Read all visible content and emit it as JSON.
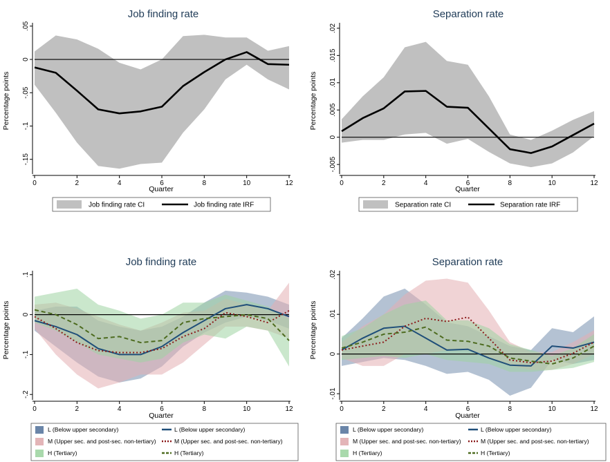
{
  "chart_data": [
    {
      "type": "area",
      "title": "Job finding rate",
      "xlabel": "Quarter",
      "ylabel": "Percentage points",
      "xlim": [
        0,
        12
      ],
      "ylim": [
        -0.17,
        0.055
      ],
      "xticks": [
        0,
        2,
        4,
        6,
        8,
        10,
        12
      ],
      "xtick_labels": [
        "0",
        "2",
        "4",
        "6",
        "8",
        "10",
        "12"
      ],
      "yticks": [
        0.05,
        0,
        -0.05,
        -0.1,
        -0.15
      ],
      "ytick_labels": [
        ".05",
        "0",
        "-.05",
        "-.1",
        "-.15"
      ],
      "zero_line": true,
      "x": [
        0,
        1,
        2,
        3,
        4,
        5,
        6,
        7,
        8,
        9,
        10,
        11,
        12
      ],
      "series": [
        {
          "name": "Job finding rate IRF",
          "color": "#000000",
          "style": "solid",
          "values": [
            -0.012,
            -0.02,
            -0.047,
            -0.075,
            -0.081,
            -0.078,
            -0.071,
            -0.04,
            -0.019,
            0.0,
            0.011,
            -0.007,
            -0.008
          ]
        }
      ],
      "bands": [
        {
          "name": "Job finding rate CI",
          "color": "#c0c0c0",
          "lower": [
            -0.038,
            -0.08,
            -0.125,
            -0.16,
            -0.164,
            -0.157,
            -0.155,
            -0.11,
            -0.075,
            -0.03,
            -0.008,
            -0.03,
            -0.045
          ],
          "upper": [
            0.012,
            0.036,
            0.03,
            0.016,
            -0.005,
            -0.015,
            0.0,
            0.035,
            0.037,
            0.033,
            0.033,
            0.013,
            0.02
          ]
        }
      ],
      "legend": {
        "placement": "bottom",
        "entries": [
          {
            "label": "Job finding rate CI",
            "kind": "band",
            "color": "#c0c0c0"
          },
          {
            "label": "Job finding rate IRF",
            "kind": "line",
            "color": "#000000",
            "style": "solid"
          }
        ]
      }
    },
    {
      "type": "area",
      "title": "Separation rate",
      "xlabel": "Quarter",
      "ylabel": "Percentage points",
      "xlim": [
        0,
        12
      ],
      "ylim": [
        -0.0065,
        0.021
      ],
      "xticks": [
        0,
        2,
        4,
        6,
        8,
        10,
        12
      ],
      "xtick_labels": [
        "0",
        "2",
        "4",
        "6",
        "8",
        "10",
        "12"
      ],
      "yticks": [
        0.02,
        0.015,
        0.01,
        0.005,
        0,
        -0.005
      ],
      "ytick_labels": [
        ".02",
        ".015",
        ".01",
        ".005",
        "0",
        "-.005"
      ],
      "zero_line": true,
      "x": [
        0,
        1,
        2,
        3,
        4,
        5,
        6,
        7,
        8,
        9,
        10,
        11,
        12
      ],
      "series": [
        {
          "name": "Separation rate IRF",
          "color": "#000000",
          "style": "solid",
          "values": [
            0.0011,
            0.0035,
            0.0053,
            0.0084,
            0.0085,
            0.0056,
            0.0054,
            0.0016,
            -0.0022,
            -0.0029,
            -0.0017,
            0.0004,
            0.0025
          ]
        }
      ],
      "bands": [
        {
          "name": "Separation rate CI",
          "color": "#c0c0c0",
          "lower": [
            -0.001,
            -0.0005,
            -0.0005,
            0.0005,
            0.0008,
            -0.0012,
            -0.0003,
            -0.0027,
            -0.0048,
            -0.0055,
            -0.0048,
            -0.0028,
            0.0002
          ],
          "upper": [
            0.0033,
            0.0075,
            0.011,
            0.0165,
            0.0175,
            0.014,
            0.0133,
            0.0075,
            0.0005,
            -0.0005,
            0.0012,
            0.0032,
            0.0048
          ]
        }
      ],
      "legend": {
        "placement": "bottom",
        "entries": [
          {
            "label": "Separation rate CI",
            "kind": "band",
            "color": "#c0c0c0"
          },
          {
            "label": "Separation rate IRF",
            "kind": "line",
            "color": "#000000",
            "style": "solid"
          }
        ]
      }
    },
    {
      "type": "area",
      "title": "Job finding rate",
      "xlabel": "Quarter",
      "ylabel": "Percentage points",
      "xlim": [
        0,
        12
      ],
      "ylim": [
        -0.21,
        0.11
      ],
      "xticks": [
        0,
        2,
        4,
        6,
        8,
        10,
        12
      ],
      "xtick_labels": [
        "0",
        "2",
        "4",
        "6",
        "8",
        "10",
        "12"
      ],
      "yticks": [
        0.1,
        0,
        -0.1,
        -0.2
      ],
      "ytick_labels": [
        ".1",
        "0",
        "-.1",
        "-.2"
      ],
      "zero_line": true,
      "x": [
        0,
        1,
        2,
        3,
        4,
        5,
        6,
        7,
        8,
        9,
        10,
        11,
        12
      ],
      "series": [
        {
          "name": "L (Below upper secondary)",
          "color": "#1f4e79",
          "style": "solid",
          "values": [
            -0.015,
            -0.03,
            -0.05,
            -0.085,
            -0.1,
            -0.1,
            -0.08,
            -0.045,
            -0.015,
            0.015,
            0.025,
            0.015,
            -0.005
          ]
        },
        {
          "name": "M (Upper sec. and post-sec. non-tertiary)",
          "color": "#8b1a1a",
          "style": "dotted",
          "values": [
            -0.005,
            -0.035,
            -0.07,
            -0.09,
            -0.095,
            -0.095,
            -0.085,
            -0.055,
            -0.035,
            0.005,
            -0.005,
            -0.02,
            0.01
          ]
        },
        {
          "name": "H (Tertiary)",
          "color": "#4d6b1f",
          "style": "dashed",
          "values": [
            0.012,
            0.0,
            -0.025,
            -0.06,
            -0.055,
            -0.07,
            -0.065,
            -0.02,
            -0.01,
            -0.005,
            0.0,
            -0.01,
            -0.065
          ]
        }
      ],
      "bands": [
        {
          "name": "L (Below upper secondary)",
          "color": "#6a85a8",
          "opacity": 0.5,
          "lower": [
            -0.04,
            -0.08,
            -0.12,
            -0.155,
            -0.17,
            -0.16,
            -0.13,
            -0.08,
            -0.045,
            -0.02,
            -0.005,
            -0.015,
            -0.035
          ],
          "upper": [
            0.01,
            0.02,
            0.02,
            -0.015,
            -0.03,
            -0.04,
            -0.03,
            -0.005,
            0.03,
            0.06,
            0.055,
            0.045,
            0.025
          ]
        },
        {
          "name": "M (Upper sec. and post-sec. non-tertiary)",
          "color": "#e3aeb3",
          "opacity": 0.55,
          "lower": [
            -0.035,
            -0.1,
            -0.15,
            -0.185,
            -0.17,
            -0.15,
            -0.15,
            -0.12,
            -0.075,
            -0.03,
            -0.03,
            -0.04,
            -0.06
          ],
          "upper": [
            0.025,
            0.03,
            0.015,
            -0.005,
            -0.025,
            -0.04,
            -0.02,
            0.005,
            0.01,
            0.04,
            0.025,
            0.01,
            0.08
          ]
        },
        {
          "name": "H (Tertiary)",
          "color": "#9fd4a3",
          "opacity": 0.55,
          "lower": [
            -0.02,
            -0.04,
            -0.07,
            -0.1,
            -0.11,
            -0.12,
            -0.11,
            -0.07,
            -0.05,
            -0.06,
            -0.03,
            -0.04,
            -0.13
          ]
        },
        {
          "name": "H (Tertiary) upper",
          "color": "#9fd4a3",
          "opacity": 0.0,
          "lower": [
            0.045,
            0.055,
            0.065,
            0.025,
            0.01,
            -0.01,
            0.0,
            0.03,
            0.03,
            0.05,
            0.035,
            0.02,
            -0.01
          ]
        }
      ],
      "legend": {
        "placement": "bottom",
        "entries": [
          {
            "label": "L (Below upper secondary)",
            "kind": "band",
            "color": "#6a85a8"
          },
          {
            "label": "L (Below upper secondary)",
            "kind": "line",
            "color": "#1f4e79",
            "style": "solid"
          },
          {
            "label": "M (Upper sec. and post-sec. non-tertiary)",
            "kind": "band",
            "color": "#e3b5b8"
          },
          {
            "label": "M (Upper sec. and post-sec. non-tertiary)",
            "kind": "line",
            "color": "#8b1a1a",
            "style": "dotted"
          },
          {
            "label": "H (Tertiary)",
            "kind": "band",
            "color": "#a9d9ac"
          },
          {
            "label": "H (Tertiary)",
            "kind": "line",
            "color": "#4d6b1f",
            "style": "dashed"
          }
        ]
      }
    },
    {
      "type": "area",
      "title": "Separation rate",
      "xlabel": "Quarter",
      "ylabel": "Percentage points",
      "xlim": [
        0,
        12
      ],
      "ylim": [
        -0.0112,
        0.021
      ],
      "xticks": [
        0,
        2,
        4,
        6,
        8,
        10,
        12
      ],
      "xtick_labels": [
        "0",
        "2",
        "4",
        "6",
        "8",
        "10",
        "12"
      ],
      "yticks": [
        0.02,
        0.01,
        0,
        -0.01
      ],
      "ytick_labels": [
        ".02",
        ".01",
        "0",
        "-.01"
      ],
      "zero_line": true,
      "x": [
        0,
        1,
        2,
        3,
        4,
        5,
        6,
        7,
        8,
        9,
        10,
        11,
        12
      ],
      "series": [
        {
          "name": "L (Below upper secondary)",
          "color": "#1f4e79",
          "style": "solid",
          "values": [
            0.001,
            0.004,
            0.0065,
            0.007,
            0.004,
            0.001,
            0.0012,
            -0.001,
            -0.0028,
            -0.003,
            0.002,
            0.0015,
            0.003
          ]
        },
        {
          "name": "M (Upper sec. and post-sec. non-tertiary)",
          "color": "#8b1a1a",
          "style": "dotted",
          "values": [
            0.001,
            0.002,
            0.003,
            0.007,
            0.009,
            0.0082,
            0.0093,
            0.004,
            -0.0015,
            -0.0022,
            -0.0018,
            0.0002,
            0.003
          ]
        },
        {
          "name": "H (Tertiary)",
          "color": "#4d6b1f",
          "style": "dashed",
          "values": [
            0.0015,
            0.003,
            0.005,
            0.0055,
            0.0068,
            0.0035,
            0.0032,
            0.002,
            -0.001,
            -0.0018,
            -0.0025,
            -0.001,
            0.002
          ]
        }
      ],
      "bands": [
        {
          "name": "L (Below upper secondary)",
          "color": "#6a85a8",
          "opacity": 0.5,
          "lower": [
            -0.003,
            -0.002,
            -0.001,
            -0.0015,
            -0.003,
            -0.005,
            -0.0045,
            -0.0065,
            -0.0105,
            -0.0085,
            -0.0015,
            -0.0025,
            -0.0015
          ],
          "upper": [
            0.004,
            0.009,
            0.0145,
            0.0165,
            0.0125,
            0.008,
            0.007,
            0.0045,
            0.002,
            0.001,
            0.0065,
            0.0055,
            0.0095
          ]
        },
        {
          "name": "M (Upper sec. and post-sec. non-tertiary)",
          "color": "#e3aeb3",
          "opacity": 0.55,
          "lower": [
            -0.001,
            -0.003,
            -0.003,
            0.0,
            0.0,
            0.001,
            0.001,
            -0.001,
            -0.003,
            -0.004,
            -0.004,
            -0.0025,
            0.0
          ],
          "upper": [
            0.003,
            0.007,
            0.01,
            0.015,
            0.0185,
            0.019,
            0.018,
            0.011,
            0.003,
            0.0005,
            0.0005,
            0.003,
            0.006
          ]
        },
        {
          "name": "H (Tertiary)",
          "color": "#9fd4a3",
          "opacity": 0.55,
          "lower": [
            -0.0015,
            -0.001,
            -0.0005,
            -0.001,
            0.0,
            -0.0015,
            -0.002,
            -0.0025,
            -0.0045,
            -0.0045,
            -0.004,
            -0.0035,
            -0.002
          ]
        },
        {
          "name": "H (Tertiary) upper",
          "color": "#9fd4a3",
          "opacity": 0.0,
          "lower": [
            0.0045,
            0.0065,
            0.01,
            0.0125,
            0.0135,
            0.0085,
            0.0085,
            0.0065,
            0.0025,
            0.001,
            -0.0005,
            0.0015,
            0.005
          ]
        }
      ],
      "legend": {
        "placement": "bottom",
        "entries": [
          {
            "label": "L (Below upper secondary)",
            "kind": "band",
            "color": "#6a85a8"
          },
          {
            "label": "L (Below upper secondary)",
            "kind": "line",
            "color": "#1f4e79",
            "style": "solid"
          },
          {
            "label": "M (Upper sec. and post-sec. non-tertiary)",
            "kind": "band",
            "color": "#e3b5b8"
          },
          {
            "label": "M (Upper sec. and post-sec. non-tertiary)",
            "kind": "line",
            "color": "#8b1a1a",
            "style": "dotted"
          },
          {
            "label": "H (Tertiary)",
            "kind": "band",
            "color": "#a9d9ac"
          },
          {
            "label": "H (Tertiary)",
            "kind": "line",
            "color": "#4d6b1f",
            "style": "dashed"
          }
        ]
      }
    }
  ]
}
